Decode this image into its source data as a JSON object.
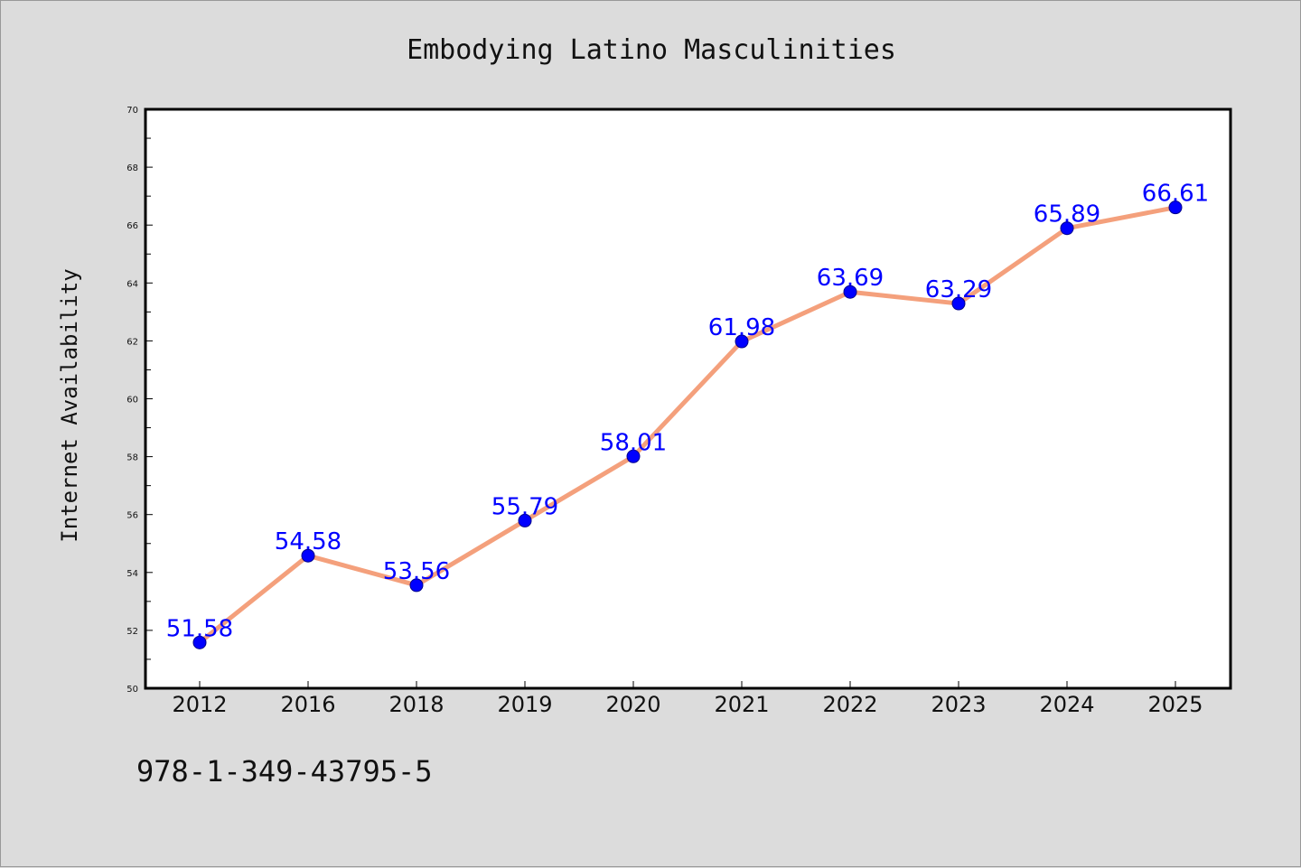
{
  "chart_data": {
    "type": "line",
    "title": "Embodying Latino Masculinities",
    "xlabel": "",
    "ylabel": "Internet Availability",
    "categories": [
      "2012",
      "2016",
      "2018",
      "2019",
      "2020",
      "2021",
      "2022",
      "2023",
      "2024",
      "2025"
    ],
    "series": [
      {
        "values": [
          51.58,
          54.58,
          53.56,
          55.79,
          58.01,
          61.98,
          63.69,
          63.29,
          65.89,
          66.61
        ],
        "line_color": "#f4a07c",
        "marker_color": "#0000ff"
      }
    ],
    "data_labels": [
      "51.58",
      "54.58",
      "53.56",
      "55.79",
      "58.01",
      "61.98",
      "63.69",
      "63.29",
      "65.89",
      "66.61"
    ],
    "ylim": [
      50,
      70
    ],
    "yticks": [
      "50",
      "52",
      "54",
      "56",
      "58",
      "60",
      "62",
      "64",
      "66",
      "68",
      "70"
    ],
    "grid": false,
    "legend": "none"
  },
  "footer": {
    "isbn": "978-1-349-43795-5"
  }
}
